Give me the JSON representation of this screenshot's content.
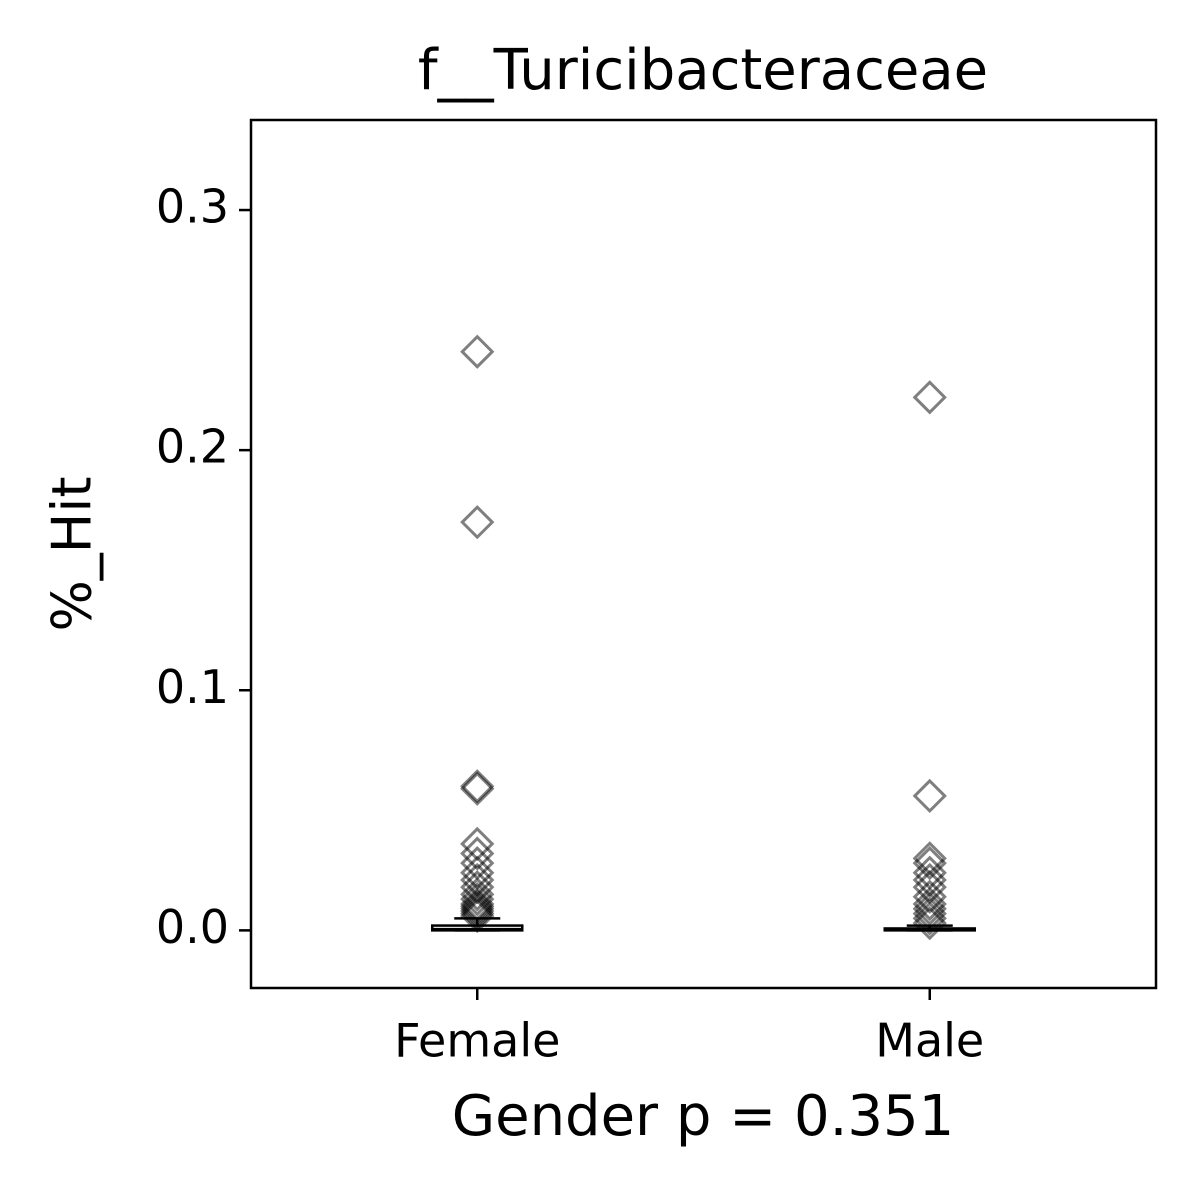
{
  "chart_data": {
    "type": "box",
    "title": "f__Turicibacteraceae",
    "x_label": "Gender p = 0.351",
    "y_label": "%_Hit",
    "categories": [
      "Female",
      "Male"
    ],
    "boxes": [
      {
        "min": 0,
        "q1": 0,
        "median": 0.0005,
        "q3": 0.002,
        "max": 0.005,
        "outliers": [
          0.241,
          0.17,
          0.06,
          0.059,
          0.036,
          0.032,
          0.028,
          0.024,
          0.021,
          0.018,
          0.015,
          0.013,
          0.011,
          0.01,
          0.009,
          0.008,
          0.007,
          0.006
        ]
      },
      {
        "min": 0,
        "q1": 0,
        "median": 0.0003,
        "q3": 0.0008,
        "max": 0.002,
        "outliers": [
          0.222,
          0.056,
          0.03,
          0.028,
          0.024,
          0.021,
          0.018,
          0.014,
          0.011,
          0.009,
          0.007,
          0.005,
          0.003
        ]
      }
    ],
    "color": "#000000",
    "outlier_color": "#808080",
    "ylim": [
      -0.024,
      0.3375
    ],
    "yticks": [
      {
        "value": 0,
        "label": "0.0"
      },
      0.1,
      0.2,
      0.3
    ]
  }
}
